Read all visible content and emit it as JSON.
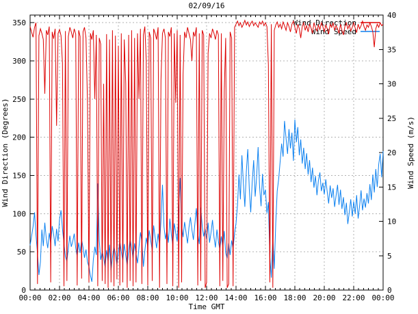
{
  "chart_data": {
    "type": "line",
    "title": "02/09/16",
    "xlabel": "Time GMT",
    "ylabel_left": "Wind Direction (Degrees)",
    "ylabel_right": "Wind Speed (m/s)",
    "grid": true,
    "legend_position": "top-right-inside",
    "x_range_hours": [
      0,
      24
    ],
    "ylim_left": [
      0,
      360
    ],
    "ylim_right": [
      0,
      40
    ],
    "x_tick_hours": [
      0,
      2,
      4,
      6,
      8,
      10,
      12,
      14,
      16,
      18,
      20,
      22,
      24
    ],
    "x_tick_labels": [
      "00:00",
      "02:00",
      "04:00",
      "06:00",
      "08:00",
      "10:00",
      "12:00",
      "14:00",
      "16:00",
      "18:00",
      "20:00",
      "22:00",
      "00:00"
    ],
    "x_minor_tick_step_hours": 0.3333,
    "left_tick_values": [
      0,
      50,
      100,
      150,
      200,
      250,
      300,
      350
    ],
    "right_tick_values": [
      0,
      5,
      10,
      15,
      20,
      25,
      30,
      35,
      40
    ],
    "x_start_hour": 0,
    "x_step_hours": 0.1,
    "colors": {
      "grid": "#b0b0b0",
      "axis": "#000000",
      "background": "#ffffff",
      "text": "#000000"
    },
    "series": [
      {
        "name": "Wind Direction",
        "axis": "left",
        "units": "degrees",
        "color": "#dd0000",
        "values": [
          345,
          338,
          331,
          344,
          350,
          8,
          333,
          342,
          336,
          328,
          257,
          340,
          334,
          345,
          10,
          338,
          329,
          342,
          215,
          336,
          341,
          333,
          297,
          5,
          339,
          12,
          332,
          344,
          338,
          330,
          342,
          335,
          6,
          340,
          332,
          15,
          338,
          344,
          330,
          245,
          10,
          336,
          328,
          340,
          250,
          334,
          5,
          330,
          322,
          12,
          270,
          8,
          335,
          3,
          328,
          10,
          340,
          5,
          333,
          14,
          320,
          6,
          336,
          10,
          328,
          270,
          3,
          334,
          12,
          340,
          5,
          330,
          10,
          336,
          250,
          342,
          8,
          334,
          345,
          300,
          6,
          338,
          330,
          12,
          342,
          336,
          328,
          344,
          3,
          275,
          336,
          342,
          330,
          8,
          338,
          332,
          344,
          5,
          336,
          245,
          340,
          3,
          334,
          10,
          282,
          338,
          330,
          344,
          336,
          328,
          300,
          338,
          332,
          344,
          6,
          336,
          12,
          340,
          334,
          3,
          10,
          310,
          336,
          330,
          342,
          336,
          328,
          340,
          334,
          5,
          336,
          12,
          260,
          330,
          3,
          8,
          338,
          330,
          5,
          344,
          348,
          352,
          346,
          350,
          344,
          348,
          353,
          347,
          351,
          345,
          349,
          352,
          346,
          350,
          347,
          344,
          351,
          348,
          352,
          346,
          350,
          345,
          295,
          10,
          348,
          3,
          340,
          347,
          351,
          344,
          348,
          342,
          351,
          346,
          340,
          350,
          345,
          338,
          348,
          352,
          344,
          336,
          348,
          342,
          330,
          345,
          350,
          340,
          346,
          338,
          348,
          343,
          336,
          350,
          344,
          339,
          347,
          341,
          350,
          345,
          338,
          347,
          342,
          335,
          348,
          344,
          350,
          340,
          346,
          342,
          336,
          348,
          340,
          334,
          345,
          350,
          342,
          347,
          339,
          344,
          350,
          343,
          337,
          348,
          342,
          346,
          352,
          345,
          340,
          347,
          344,
          350,
          345,
          338,
          318,
          342,
          348,
          344,
          350,
          346,
          348
        ]
      },
      {
        "name": "Wind Speed",
        "axis": "right",
        "units": "m/s",
        "color": "#0b80f0",
        "values": [
          6.5,
          7.8,
          9.2,
          11.3,
          8,
          5.3,
          2.2,
          4.1,
          8.8,
          6.4,
          9.8,
          7.4,
          6.1,
          8.3,
          6.8,
          9.3,
          8.1,
          6.4,
          8.9,
          7.1,
          10.3,
          11.6,
          8.9,
          6.8,
          4.9,
          4.2,
          6.1,
          7.9,
          6.3,
          7.1,
          8.2,
          6.1,
          4.9,
          6.9,
          5.4,
          7.3,
          6.2,
          4.7,
          5.9,
          4.1,
          3.4,
          2.1,
          1.2,
          4.4,
          6.3,
          5.1,
          15.5,
          7.2,
          4.4,
          5.6,
          4.7,
          3.3,
          5.8,
          4.2,
          6.6,
          2.9,
          4.8,
          6.4,
          5.2,
          3.7,
          5.4,
          7.1,
          5.6,
          4.3,
          6.7,
          5,
          3.6,
          5.8,
          7.4,
          6.1,
          4.6,
          6.8,
          5.3,
          3.9,
          6.2,
          8.4,
          7,
          3.4,
          5.7,
          7.6,
          6.3,
          8.7,
          7.2,
          5.8,
          9.4,
          7.6,
          6.1,
          8.2,
          6.6,
          10.1,
          15.3,
          9.2,
          7.4,
          8.8,
          6.9,
          10.4,
          8.1,
          6.6,
          9.7,
          8.3,
          7.1,
          10.8,
          16.3,
          9.4,
          7.7,
          9.9,
          8.4,
          6.8,
          9.1,
          10.6,
          8.8,
          7.3,
          9.6,
          11.9,
          8.2,
          6.7,
          12,
          9.3,
          7.8,
          8.9,
          7.4,
          9.8,
          6.9,
          8.4,
          10.2,
          7.7,
          6.2,
          8.8,
          7.1,
          5.9,
          7.8,
          6.3,
          8.6,
          5.4,
          4.6,
          6.8,
          5.1,
          7.2,
          6,
          8.3,
          9.7,
          12.4,
          16.8,
          13.2,
          19.6,
          15.4,
          12.1,
          17.3,
          20.5,
          14.7,
          11.3,
          15.8,
          18.9,
          13.6,
          16.4,
          20.8,
          15.1,
          12.2,
          16.9,
          13.8,
          14.6,
          11.2,
          12.8,
          4.9,
          1.8,
          7.6,
          3.1,
          9.8,
          14.4,
          16.2,
          18.7,
          21.3,
          19.4,
          24.6,
          22.1,
          19.8,
          23.4,
          20.6,
          22.9,
          18.8,
          24.8,
          21.5,
          23.7,
          19.6,
          21.9,
          18.4,
          20.7,
          17.6,
          19.9,
          16.8,
          18.9,
          15.7,
          17.8,
          14.9,
          16.6,
          13.8,
          15.9,
          17.1,
          14.4,
          15.6,
          13.9,
          16.1,
          14.3,
          12.6,
          15.2,
          13.4,
          14.8,
          12.1,
          13.7,
          15.3,
          12.4,
          14.6,
          11.8,
          13.5,
          10.9,
          12.7,
          9.6,
          11.4,
          13.2,
          10.7,
          12.9,
          11.1,
          13.8,
          10.4,
          12.2,
          14.5,
          11.6,
          13.3,
          12,
          14.1,
          12.6,
          15.4,
          13.1,
          16.8,
          14.2,
          17.6,
          15,
          18.3,
          19.8,
          16.4,
          20.2
        ]
      }
    ]
  }
}
